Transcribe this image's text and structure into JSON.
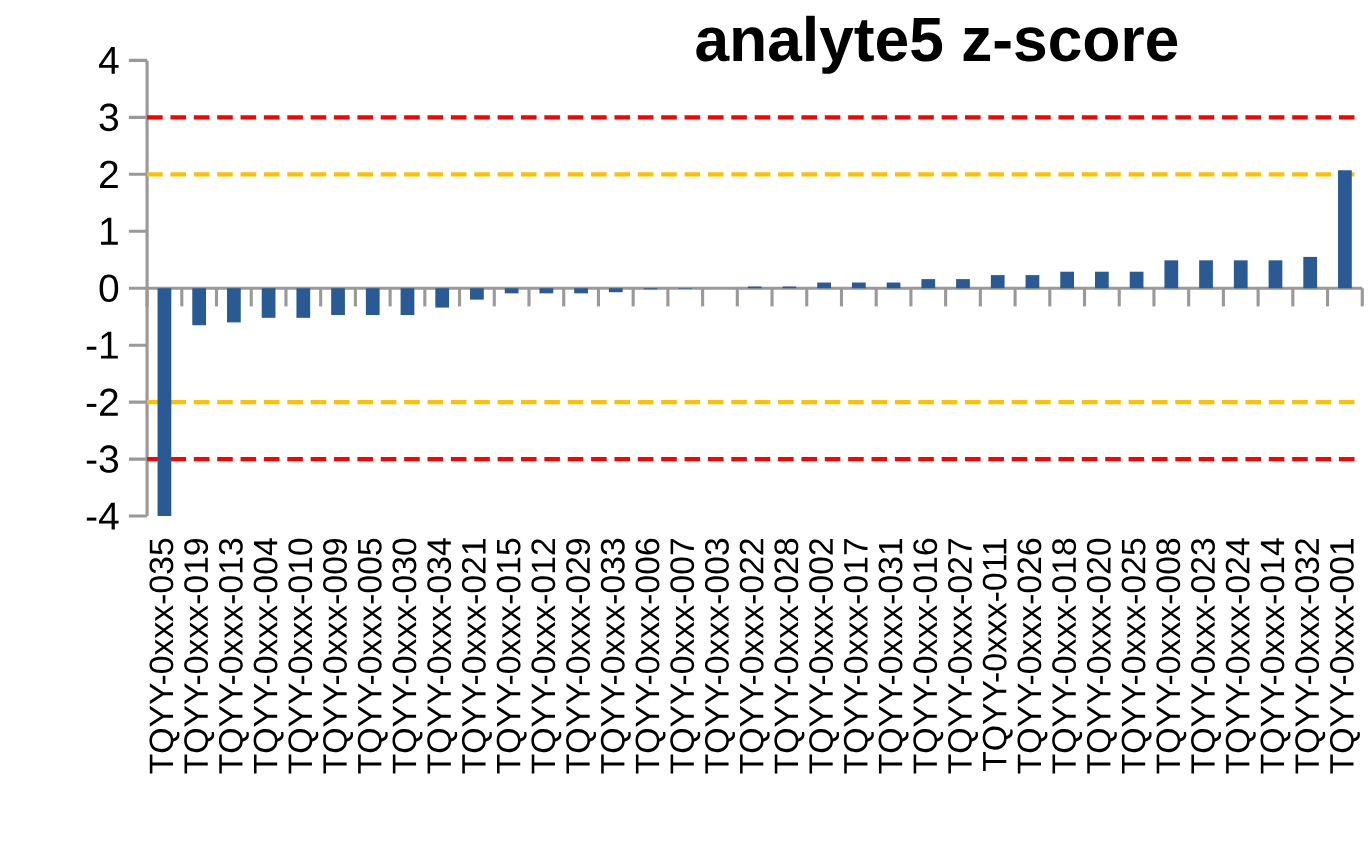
{
  "chart_data": {
    "type": "bar",
    "title": "analyte5 z-score",
    "categories": [
      "TQYY-0xxx-035",
      "TQYY-0xxx-019",
      "TQYY-0xxx-013",
      "TQYY-0xxx-004",
      "TQYY-0xxx-010",
      "TQYY-0xxx-009",
      "TQYY-0xxx-005",
      "TQYY-0xxx-030",
      "TQYY-0xxx-034",
      "TQYY-0xxx-021",
      "TQYY-0xxx-015",
      "TQYY-0xxx-012",
      "TQYY-0xxx-029",
      "TQYY-0xxx-033",
      "TQYY-0xxx-006",
      "TQYY-0xxx-007",
      "TQYY-0xxx-003",
      "TQYY-0xxx-022",
      "TQYY-0xxx-028",
      "TQYY-0xxx-002",
      "TQYY-0xxx-017",
      "TQYY-0xxx-031",
      "TQYY-0xxx-016",
      "TQYY-0xxx-027",
      "TQYY-0xxx-011",
      "TQYY-0xxx-026",
      "TQYY-0xxx-018",
      "TQYY-0xxx-020",
      "TQYY-0xxx-025",
      "TQYY-0xxx-008",
      "TQYY-0xxx-023",
      "TQYY-0xxx-024",
      "TQYY-0xxx-014",
      "TQYY-0xxx-032",
      "TQYY-0xxx-001"
    ],
    "values": [
      -4.0,
      -0.65,
      -0.6,
      -0.52,
      -0.52,
      -0.47,
      -0.47,
      -0.47,
      -0.34,
      -0.2,
      -0.09,
      -0.09,
      -0.09,
      -0.07,
      -0.02,
      -0.01,
      null,
      0.03,
      0.03,
      0.1,
      0.1,
      0.1,
      0.16,
      0.16,
      0.23,
      0.23,
      0.29,
      0.29,
      0.29,
      0.49,
      0.49,
      0.49,
      0.49,
      0.55,
      2.07
    ],
    "color": "#2a5a93",
    "ylim": [
      -4,
      4
    ],
    "yticks": [
      -4,
      -3,
      -2,
      -1,
      0,
      1,
      2,
      3,
      4
    ],
    "ref_lines": [
      {
        "axis": "y",
        "value": 3,
        "color": "#ff0000",
        "line_style": "dashed"
      },
      {
        "axis": "y",
        "value": 2,
        "color": "#ffc000",
        "line_style": "dashed"
      },
      {
        "axis": "y",
        "value": -2,
        "color": "#ffc000",
        "line_style": "dashed"
      },
      {
        "axis": "y",
        "value": -3,
        "color": "#ff0000",
        "line_style": "dashed"
      }
    ]
  }
}
